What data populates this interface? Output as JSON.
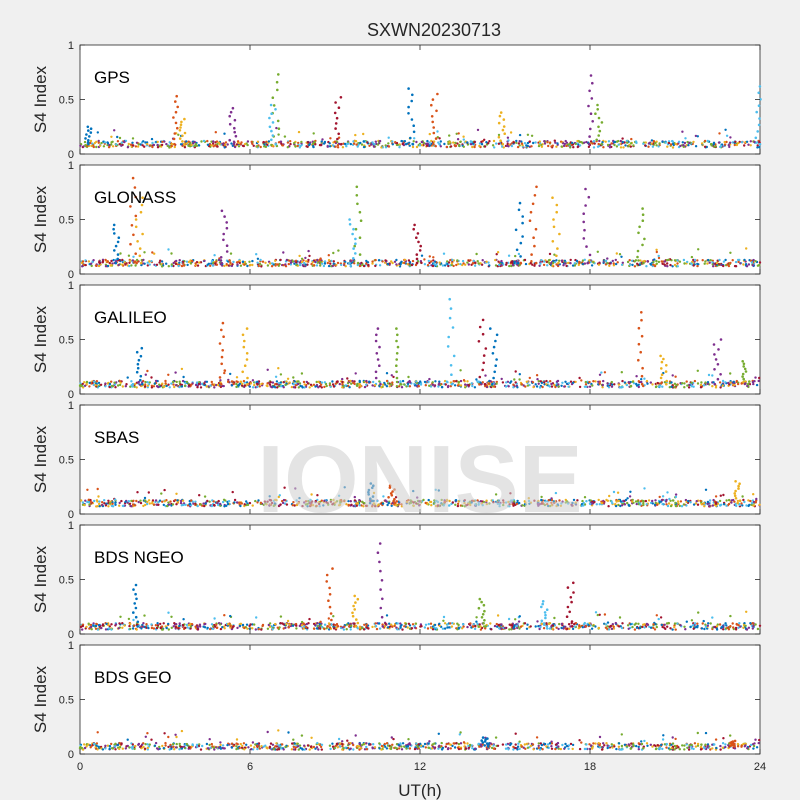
{
  "title": "SXWN20230713",
  "xlabel": "UT(h)",
  "ylabel": "S4 Index",
  "watermark": "IONISE",
  "colors": [
    "#0072BD",
    "#D95319",
    "#EDB120",
    "#7E2F8E",
    "#77AC30",
    "#4DBEEE",
    "#A2142F"
  ],
  "chart_data": [
    {
      "type": "scatter",
      "label": "GPS",
      "xlim": [
        0,
        24
      ],
      "ylim": [
        0,
        1
      ],
      "xticks": [
        0,
        6,
        12,
        18,
        24
      ],
      "yticks": [
        0,
        0.5,
        1
      ],
      "baseline": 0.09,
      "spikes": [
        {
          "x": 0.3,
          "y": 0.25
        },
        {
          "x": 3.4,
          "y": 0.53
        },
        {
          "x": 3.6,
          "y": 0.32
        },
        {
          "x": 5.4,
          "y": 0.42
        },
        {
          "x": 6.9,
          "y": 0.73
        },
        {
          "x": 6.8,
          "y": 0.45
        },
        {
          "x": 9.1,
          "y": 0.52
        },
        {
          "x": 11.7,
          "y": 0.6
        },
        {
          "x": 12.5,
          "y": 0.55
        },
        {
          "x": 14.9,
          "y": 0.38
        },
        {
          "x": 18.0,
          "y": 0.72
        },
        {
          "x": 18.3,
          "y": 0.45
        },
        {
          "x": 23.9,
          "y": 0.62
        }
      ]
    },
    {
      "type": "scatter",
      "label": "GLONASS",
      "xlim": [
        0,
        24
      ],
      "ylim": [
        0,
        1
      ],
      "xticks": [
        0,
        6,
        12,
        18,
        24
      ],
      "yticks": [
        0,
        0.5,
        1
      ],
      "baseline": 0.1,
      "spikes": [
        {
          "x": 1.3,
          "y": 0.45
        },
        {
          "x": 1.9,
          "y": 0.88
        },
        {
          "x": 2.1,
          "y": 0.7
        },
        {
          "x": 5.1,
          "y": 0.58
        },
        {
          "x": 9.8,
          "y": 0.8
        },
        {
          "x": 9.6,
          "y": 0.5
        },
        {
          "x": 11.9,
          "y": 0.45
        },
        {
          "x": 15.5,
          "y": 0.65
        },
        {
          "x": 16.0,
          "y": 0.8
        },
        {
          "x": 16.8,
          "y": 0.7
        },
        {
          "x": 17.9,
          "y": 0.78
        },
        {
          "x": 19.8,
          "y": 0.6
        }
      ]
    },
    {
      "type": "scatter",
      "label": "GALILEO",
      "xlim": [
        0,
        24
      ],
      "ylim": [
        0,
        1
      ],
      "xticks": [
        0,
        6,
        12,
        18,
        24
      ],
      "yticks": [
        0,
        0.5,
        1
      ],
      "baseline": 0.09,
      "spikes": [
        {
          "x": 2.1,
          "y": 0.42
        },
        {
          "x": 5.0,
          "y": 0.65
        },
        {
          "x": 5.8,
          "y": 0.6
        },
        {
          "x": 10.5,
          "y": 0.6
        },
        {
          "x": 11.2,
          "y": 0.6
        },
        {
          "x": 13.1,
          "y": 0.87
        },
        {
          "x": 14.2,
          "y": 0.68
        },
        {
          "x": 14.6,
          "y": 0.6
        },
        {
          "x": 19.8,
          "y": 0.75
        },
        {
          "x": 20.6,
          "y": 0.35
        },
        {
          "x": 22.5,
          "y": 0.5
        },
        {
          "x": 23.5,
          "y": 0.3
        }
      ]
    },
    {
      "type": "scatter",
      "label": "SBAS",
      "xlim": [
        0,
        24
      ],
      "ylim": [
        0,
        1
      ],
      "xticks": [
        0,
        6,
        12,
        18,
        24
      ],
      "yticks": [
        0,
        0.5,
        1
      ],
      "baseline": 0.1,
      "spikes": [
        {
          "x": 10.3,
          "y": 0.28
        },
        {
          "x": 11.0,
          "y": 0.26
        },
        {
          "x": 23.2,
          "y": 0.3
        }
      ]
    },
    {
      "type": "scatter",
      "label": "BDS NGEO",
      "xlim": [
        0,
        24
      ],
      "ylim": [
        0,
        1
      ],
      "xticks": [
        0,
        6,
        12,
        18,
        24
      ],
      "yticks": [
        0,
        0.5,
        1
      ],
      "baseline": 0.07,
      "spikes": [
        {
          "x": 2.0,
          "y": 0.45
        },
        {
          "x": 8.8,
          "y": 0.6
        },
        {
          "x": 9.7,
          "y": 0.35
        },
        {
          "x": 10.6,
          "y": 0.83
        },
        {
          "x": 14.2,
          "y": 0.32
        },
        {
          "x": 16.4,
          "y": 0.3
        },
        {
          "x": 17.3,
          "y": 0.47
        }
      ]
    },
    {
      "type": "scatter",
      "label": "BDS GEO",
      "xlim": [
        0,
        24
      ],
      "ylim": [
        0,
        1
      ],
      "xticks": [
        0,
        6,
        12,
        18,
        24
      ],
      "yticks": [
        0,
        0.5,
        1
      ],
      "baseline": 0.07,
      "spikes": [
        {
          "x": 14.3,
          "y": 0.15
        },
        {
          "x": 23.0,
          "y": 0.12
        }
      ]
    }
  ]
}
